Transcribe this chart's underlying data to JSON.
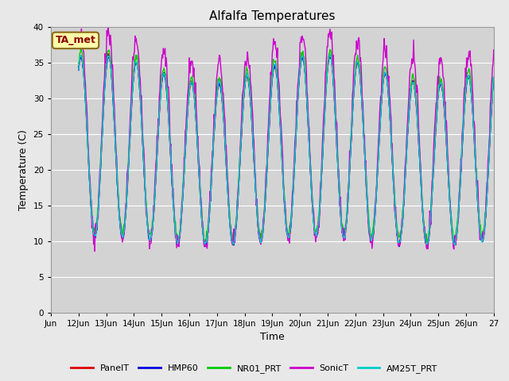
{
  "title": "Alfalfa Temperatures",
  "ylabel": "Temperature (C)",
  "xlabel": "Time",
  "annotation": "TA_met",
  "background_color": "#e8e8e8",
  "plot_bg_color": "#d3d3d3",
  "ylim": [
    0,
    40
  ],
  "yticks": [
    0,
    5,
    10,
    15,
    20,
    25,
    30,
    35,
    40
  ],
  "series": [
    {
      "label": "PanelT",
      "color": "#dd0000"
    },
    {
      "label": "HMP60",
      "color": "#0000dd"
    },
    {
      "label": "NR01_PRT",
      "color": "#00cc00"
    },
    {
      "label": "SonicT",
      "color": "#cc00cc"
    },
    {
      "label": "AM25T_PRT",
      "color": "#00cccc"
    }
  ],
  "xtick_labels": [
    "Jun",
    "12Jun",
    "13Jun",
    "14Jun",
    "15Jun",
    "16Jun",
    "17Jun",
    "18Jun",
    "19Jun",
    "20Jun",
    "21Jun",
    "22Jun",
    "23Jun",
    "24Jun",
    "25Jun",
    "26Jun",
    "27"
  ],
  "annotation_facecolor": "#ffffaa",
  "annotation_edgecolor": "#8b6914",
  "annotation_textcolor": "#8b0000"
}
